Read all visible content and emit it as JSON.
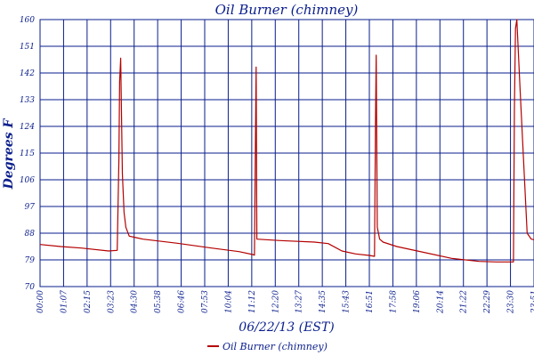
{
  "chart_data": {
    "type": "line",
    "title": "Oil Burner (chimney)",
    "xlabel": "06/22/13 (EST)",
    "ylabel": "Degrees F",
    "ylim": [
      70,
      160
    ],
    "xlim_minutes": [
      0,
      1440
    ],
    "y_ticks": [
      "70",
      "79",
      "88",
      "97",
      "106",
      "115",
      "124",
      "133",
      "142",
      "151",
      "160"
    ],
    "x_ticks": [
      "00:00",
      "01:07",
      "02:15",
      "03:23",
      "04:30",
      "05:38",
      "06:46",
      "07:53",
      "10:04",
      "11:12",
      "12:20",
      "13:27",
      "14:35",
      "15:43",
      "16:51",
      "17:58",
      "19:06",
      "20:14",
      "21:22",
      "22:29",
      "23:30",
      "23:51"
    ],
    "grid": true,
    "legend_position": "bottom-center",
    "colors": {
      "line": "#b40000",
      "grid": "#0a1e8c",
      "text": "#0a1e8c"
    },
    "series": [
      {
        "name": "Oil Burner (chimney)",
        "x_minutes": [
          0,
          60,
          120,
          200,
          225,
          230,
          232,
          235,
          240,
          245,
          250,
          260,
          280,
          300,
          400,
          500,
          580,
          620,
          625,
          628,
          630,
          632,
          700,
          800,
          840,
          880,
          920,
          960,
          975,
          978,
          980,
          983,
          990,
          1000,
          1040,
          1100,
          1200,
          1280,
          1330,
          1380,
          1383,
          1386,
          1390,
          1400,
          1420,
          1432,
          1440
        ],
        "values": [
          84.2,
          83.5,
          83.0,
          82.0,
          82.2,
          113,
          139,
          147,
          108,
          95,
          90,
          87,
          86.5,
          86.0,
          84.6,
          83.0,
          81.8,
          80.8,
          80.6,
          118,
          144,
          86.0,
          85.5,
          85.0,
          84.5,
          82.0,
          81.0,
          80.5,
          80.2,
          125,
          148,
          90,
          86.0,
          85.0,
          83.5,
          82.0,
          79.5,
          78.5,
          78.3,
          78.3,
          130,
          157,
          160,
          135,
          88,
          86.0,
          85.8
        ]
      }
    ]
  }
}
